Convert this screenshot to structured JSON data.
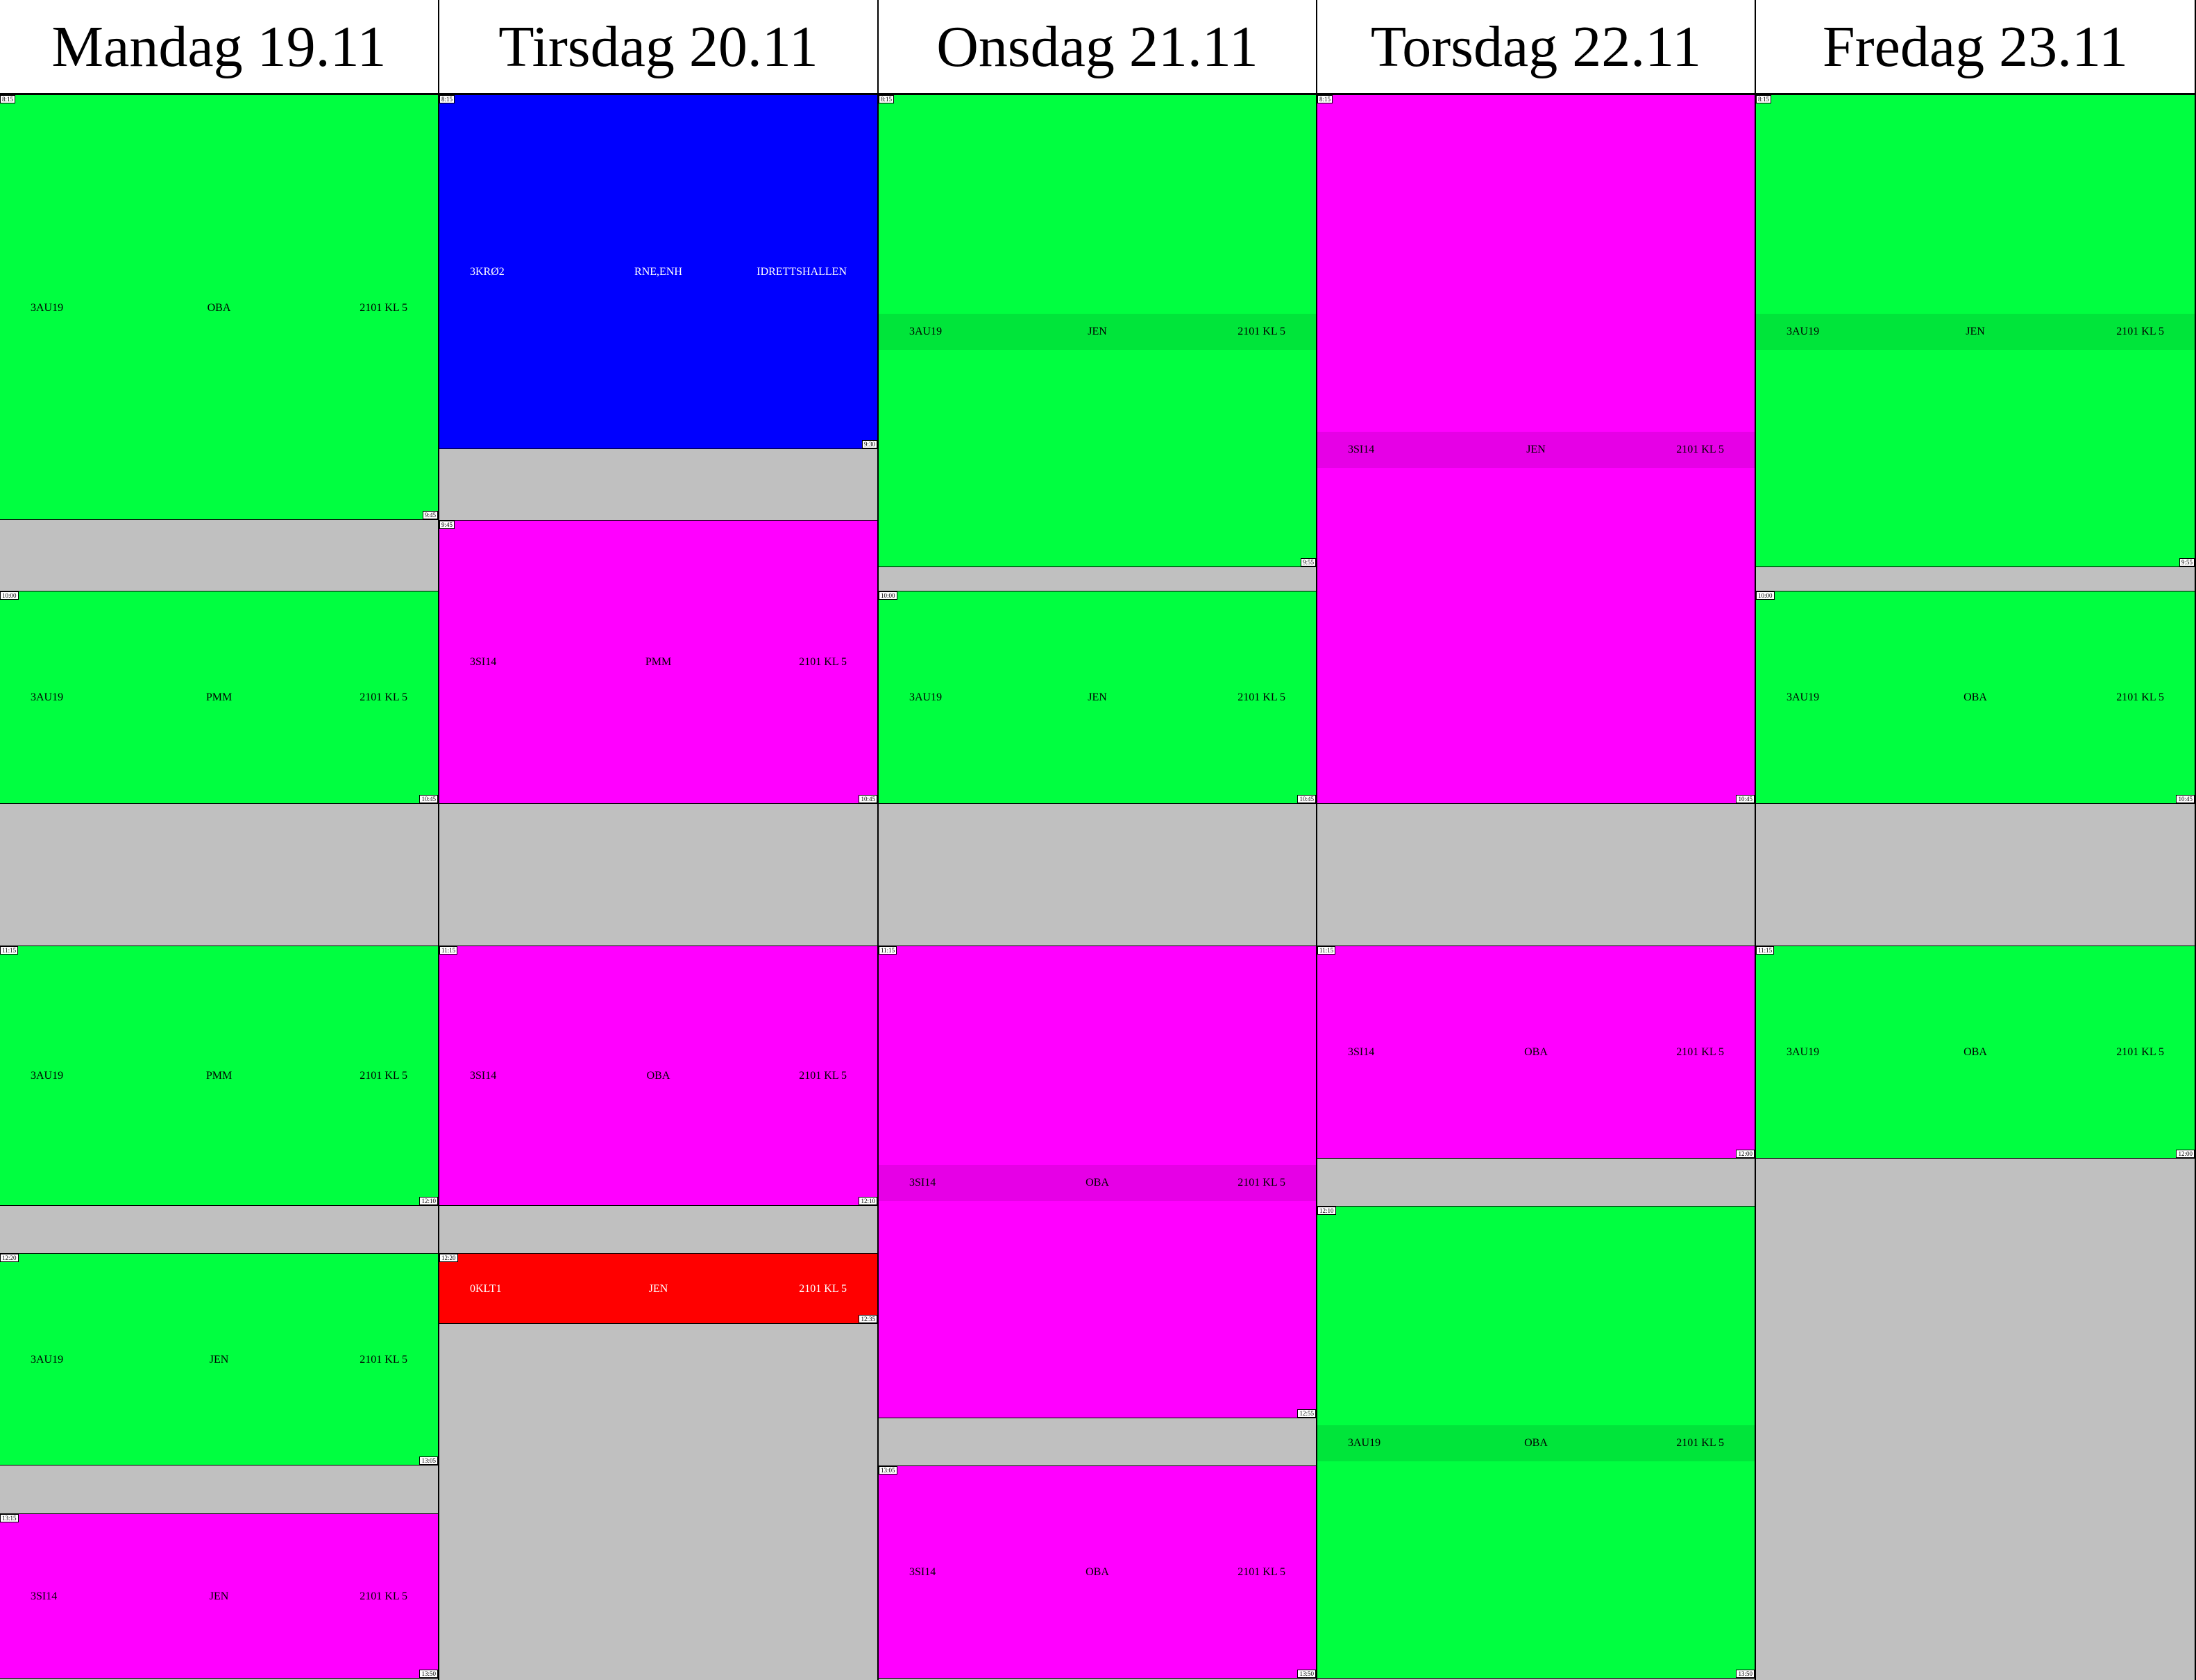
{
  "colors": {
    "green": "#00ff40",
    "green_stripe": "#00e53a",
    "magenta": "#ff00ff",
    "magenta_stripe": "#e600e6",
    "blue": "#0000ff",
    "red": "#ff0000",
    "background": "#c0c0c0"
  },
  "days": [
    {
      "title": "Mandag 19.11",
      "lessons": [
        {
          "group": "3AU19",
          "teacher": "OBA",
          "room": "2101 KL 5",
          "start": "8:15",
          "end": "9:45",
          "color": "green"
        },
        {
          "group": "3AU19",
          "teacher": "PMM",
          "room": "2101 KL 5",
          "start": "10:00",
          "end": "10:45",
          "color": "green"
        },
        {
          "group": "3AU19",
          "teacher": "PMM",
          "room": "2101 KL 5",
          "start": "11:15",
          "end": "12:10",
          "color": "green"
        },
        {
          "group": "3AU19",
          "teacher": "JEN",
          "room": "2101 KL 5",
          "start": "12:20",
          "end": "13:05",
          "color": "green"
        },
        {
          "group": "3SI14",
          "teacher": "JEN",
          "room": "2101 KL 5",
          "start": "13:15",
          "end": "13:50",
          "color": "magenta"
        }
      ]
    },
    {
      "title": "Tirsdag 20.11",
      "lessons": [
        {
          "group": "3KRØ2",
          "teacher": "RNE,ENH",
          "room": "IDRETTSHALLEN",
          "start": "8:15",
          "end": "9:30",
          "color": "blue"
        },
        {
          "group": "3SI14",
          "teacher": "PMM",
          "room": "2101 KL 5",
          "start": "9:45",
          "end": "10:45",
          "color": "magenta"
        },
        {
          "group": "3SI14",
          "teacher": "OBA",
          "room": "2101 KL 5",
          "start": "11:15",
          "end": "12:10",
          "color": "magenta"
        },
        {
          "group": "0KLT1",
          "teacher": "JEN",
          "room": "2101 KL 5",
          "start": "12:20",
          "end": "12:35",
          "color": "red"
        }
      ]
    },
    {
      "title": "Onsdag 21.11",
      "lessons": [
        {
          "group": "3AU19",
          "teacher": "JEN",
          "room": "2101 KL 5",
          "start": "8:15",
          "end": "9:55",
          "color": "green",
          "stripe": true
        },
        {
          "group": "3AU19",
          "teacher": "JEN",
          "room": "2101 KL 5",
          "start": "10:00",
          "end": "10:45",
          "color": "green"
        },
        {
          "group": "3SI14",
          "teacher": "OBA",
          "room": "2101 KL 5",
          "start": "11:15",
          "end": "12:55",
          "color": "magenta",
          "stripe": true
        },
        {
          "group": "3SI14",
          "teacher": "OBA",
          "room": "2101 KL 5",
          "start": "13:05",
          "end": "13:50",
          "color": "magenta"
        }
      ]
    },
    {
      "title": "Torsdag 22.11",
      "lessons": [
        {
          "group": "3SI14",
          "teacher": "JEN",
          "room": "2101 KL 5",
          "start": "8:15",
          "end": "10:45",
          "color": "magenta",
          "stripe": true
        },
        {
          "group": "3SI14",
          "teacher": "OBA",
          "room": "2101 KL 5",
          "start": "11:15",
          "end": "12:00",
          "color": "magenta"
        },
        {
          "group": "3AU19",
          "teacher": "OBA",
          "room": "2101 KL 5",
          "start": "12:10",
          "end": "13:50",
          "color": "green",
          "stripe": true
        }
      ]
    },
    {
      "title": "Fredag 23.11",
      "lessons": [
        {
          "group": "3AU19",
          "teacher": "JEN",
          "room": "2101 KL 5",
          "start": "8:15",
          "end": "9:55",
          "color": "green",
          "stripe": true
        },
        {
          "group": "3AU19",
          "teacher": "OBA",
          "room": "2101 KL 5",
          "start": "10:00",
          "end": "10:45",
          "color": "green"
        },
        {
          "group": "3AU19",
          "teacher": "OBA",
          "room": "2101 KL 5",
          "start": "11:15",
          "end": "12:00",
          "color": "green"
        }
      ]
    }
  ]
}
